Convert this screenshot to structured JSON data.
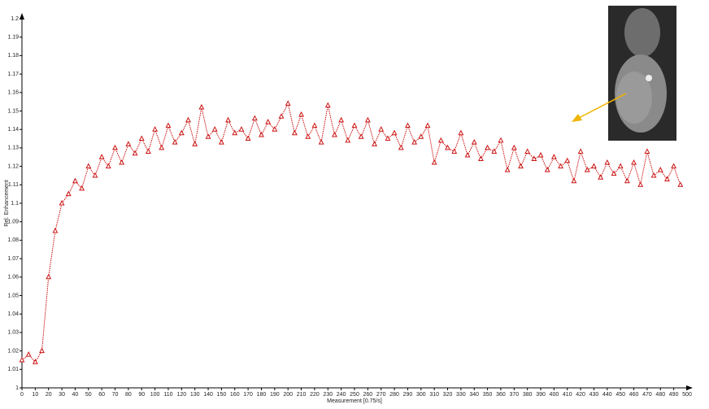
{
  "chart_data": {
    "type": "line",
    "y_label": "Rel. Enhancement",
    "x_label": "Measurement [0.75/s]",
    "color": "#cc1111",
    "x": [
      0,
      5,
      10,
      15,
      20,
      25,
      30,
      35,
      40,
      45,
      50,
      55,
      60,
      65,
      70,
      75,
      80,
      85,
      90,
      95,
      100,
      105,
      110,
      115,
      120,
      125,
      130,
      135,
      140,
      145,
      150,
      155,
      160,
      165,
      170,
      175,
      180,
      185,
      190,
      195,
      200,
      205,
      210,
      215,
      220,
      225,
      230,
      235,
      240,
      245,
      250,
      255,
      260,
      265,
      270,
      275,
      280,
      285,
      290,
      295,
      300,
      305,
      310,
      315,
      320,
      325,
      330,
      335,
      340,
      345,
      350,
      355,
      360,
      365,
      370,
      375,
      380,
      385,
      390,
      395,
      400,
      405,
      410,
      415,
      420,
      425,
      430,
      435,
      440,
      445,
      450,
      455,
      460,
      465,
      470,
      475,
      480,
      485,
      490,
      495
    ],
    "values": [
      1.015,
      1.018,
      1.014,
      1.02,
      1.06,
      1.085,
      1.1,
      1.105,
      1.112,
      1.108,
      1.12,
      1.115,
      1.125,
      1.12,
      1.13,
      1.122,
      1.132,
      1.127,
      1.135,
      1.128,
      1.14,
      1.13,
      1.142,
      1.133,
      1.138,
      1.145,
      1.132,
      1.152,
      1.136,
      1.14,
      1.133,
      1.145,
      1.138,
      1.14,
      1.135,
      1.146,
      1.137,
      1.144,
      1.14,
      1.147,
      1.154,
      1.138,
      1.148,
      1.136,
      1.142,
      1.133,
      1.153,
      1.137,
      1.145,
      1.134,
      1.142,
      1.136,
      1.145,
      1.132,
      1.14,
      1.135,
      1.138,
      1.13,
      1.142,
      1.133,
      1.136,
      1.142,
      1.122,
      1.134,
      1.13,
      1.128,
      1.138,
      1.126,
      1.133,
      1.124,
      1.13,
      1.128,
      1.134,
      1.118,
      1.13,
      1.12,
      1.128,
      1.124,
      1.126,
      1.118,
      1.125,
      1.12,
      1.123,
      1.112,
      1.128,
      1.118,
      1.12,
      1.114,
      1.122,
      1.116,
      1.12,
      1.112,
      1.122,
      1.11,
      1.128,
      1.115,
      1.118,
      1.113,
      1.12,
      1.11
    ],
    "xlim": [
      0,
      500
    ],
    "xticks": [
      0,
      10,
      20,
      30,
      40,
      50,
      60,
      70,
      80,
      90,
      100,
      110,
      120,
      130,
      140,
      150,
      160,
      170,
      180,
      190,
      200,
      210,
      220,
      230,
      240,
      250,
      260,
      270,
      280,
      290,
      300,
      310,
      320,
      330,
      340,
      350,
      360,
      370,
      380,
      390,
      400,
      410,
      420,
      430,
      440,
      450,
      460,
      470,
      480,
      490,
      500
    ],
    "ylim": [
      1,
      1.2
    ],
    "yticks": [
      1,
      1.01,
      1.02,
      1.03,
      1.04,
      1.05,
      1.06,
      1.07,
      1.08,
      1.09,
      1.1,
      1.11,
      1.12,
      1.13,
      1.14,
      1.15,
      1.16,
      1.17,
      1.18,
      1.19,
      1.2
    ]
  }
}
